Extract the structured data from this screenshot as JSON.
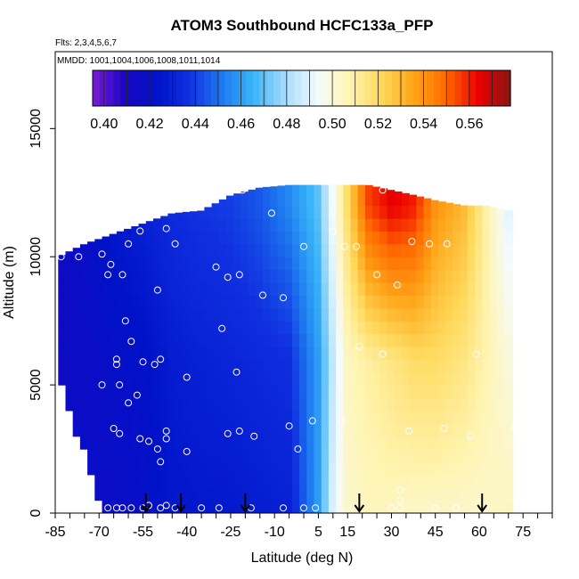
{
  "chart_data": {
    "type": "heatmap",
    "title": "ATOM3 Southbound HCFC133a_PFP",
    "flights_text": "Flts: 2,3,4,5,6,7",
    "dates_text": "MMDD: 1001,1004,1006,1008,1011,1014",
    "xlabel": "Latitude (deg N)",
    "ylabel": "Altitude (m)",
    "xlim": [
      -85,
      85
    ],
    "ylim": [
      0,
      18000
    ],
    "x_ticks": [
      -85,
      -70,
      -55,
      -40,
      -25,
      -10,
      5,
      15,
      30,
      45,
      60,
      75
    ],
    "y_ticks": [
      0,
      5000,
      10000,
      15000
    ],
    "colorbar": {
      "ticks": [
        "0.40",
        "0.42",
        "0.44",
        "0.46",
        "0.48",
        "0.50",
        "0.52",
        "0.54",
        "0.56"
      ],
      "range": [
        0.395,
        0.578
      ],
      "colors": [
        "#7a1cd8",
        "#1a06c2",
        "#0012c8",
        "#1030e0",
        "#1e78f0",
        "#38b4f8",
        "#a8dcfc",
        "#f4fbff",
        "#fff4b0",
        "#ffd85a",
        "#ffa418",
        "#ff6a00",
        "#ec0000",
        "#8a1414"
      ]
    },
    "arrow_latitudes": [
      -54,
      -42,
      -20,
      19,
      61
    ],
    "profiles": [
      {
        "lat": -84,
        "top": 10000,
        "values": [
          0.415,
          0.415,
          0.415
        ]
      },
      {
        "lat": -75,
        "top": 10500,
        "values": [
          0.418,
          0.417,
          0.419
        ]
      },
      {
        "lat": -65,
        "top": 10900,
        "values": [
          0.418,
          0.42,
          0.426
        ]
      },
      {
        "lat": -55,
        "top": 11300,
        "values": [
          0.42,
          0.422,
          0.43
        ]
      },
      {
        "lat": -45,
        "top": 11700,
        "values": [
          0.425,
          0.428,
          0.435
        ]
      },
      {
        "lat": -35,
        "top": 11800,
        "values": [
          0.426,
          0.43,
          0.438
        ]
      },
      {
        "lat": -25,
        "top": 12400,
        "values": [
          0.426,
          0.432,
          0.44
        ]
      },
      {
        "lat": -15,
        "top": 12700,
        "values": [
          0.428,
          0.434,
          0.445
        ]
      },
      {
        "lat": -5,
        "top": 12800,
        "values": [
          0.43,
          0.436,
          0.455
        ]
      },
      {
        "lat": 5,
        "top": 12800,
        "values": [
          0.46,
          0.46,
          0.47
        ]
      },
      {
        "lat": 10,
        "top": 12800,
        "values": [
          0.49,
          0.485,
          0.495
        ]
      },
      {
        "lat": 15,
        "top": 12800,
        "values": [
          0.503,
          0.505,
          0.52
        ]
      },
      {
        "lat": 22,
        "top": 12800,
        "values": [
          0.505,
          0.51,
          0.555
        ]
      },
      {
        "lat": 30,
        "top": 12600,
        "values": [
          0.505,
          0.515,
          0.565
        ]
      },
      {
        "lat": 38,
        "top": 12400,
        "values": [
          0.503,
          0.52,
          0.56
        ]
      },
      {
        "lat": 45,
        "top": 12200,
        "values": [
          0.503,
          0.52,
          0.54
        ]
      },
      {
        "lat": 55,
        "top": 12000,
        "values": [
          0.503,
          0.515,
          0.53
        ]
      },
      {
        "lat": 62,
        "top": 12000,
        "values": [
          0.503,
          0.508,
          0.51
        ]
      },
      {
        "lat": 70,
        "top": 11800,
        "values": [
          0.505,
          0.5,
          0.49
        ]
      }
    ],
    "samples": [
      {
        "lat": -83,
        "alt": 10000
      },
      {
        "lat": -77,
        "alt": 10000
      },
      {
        "lat": -69,
        "alt": 10100
      },
      {
        "lat": -66,
        "alt": 9700
      },
      {
        "lat": -67,
        "alt": 9300
      },
      {
        "lat": -62,
        "alt": 9300
      },
      {
        "lat": -60,
        "alt": 10500
      },
      {
        "lat": -56,
        "alt": 11000
      },
      {
        "lat": -47,
        "alt": 11100
      },
      {
        "lat": -44,
        "alt": 10500
      },
      {
        "lat": -30,
        "alt": 9600
      },
      {
        "lat": -26,
        "alt": 9200
      },
      {
        "lat": -22,
        "alt": 9300
      },
      {
        "lat": -21,
        "alt": 12600
      },
      {
        "lat": -11,
        "alt": 11700
      },
      {
        "lat": 0,
        "alt": 10400
      },
      {
        "lat": 10,
        "alt": 11000
      },
      {
        "lat": 14,
        "alt": 10400
      },
      {
        "lat": 18,
        "alt": 10400
      },
      {
        "lat": 27,
        "alt": 12600
      },
      {
        "lat": 37,
        "alt": 10600
      },
      {
        "lat": 43,
        "alt": 10500
      },
      {
        "lat": 49,
        "alt": 10500
      },
      {
        "lat": 25,
        "alt": 9300
      },
      {
        "lat": 32,
        "alt": 8900
      },
      {
        "lat": -50,
        "alt": 8700
      },
      {
        "lat": -14,
        "alt": 8500
      },
      {
        "lat": -7,
        "alt": 8400
      },
      {
        "lat": -61,
        "alt": 7500
      },
      {
        "lat": -28,
        "alt": 7200
      },
      {
        "lat": -59,
        "alt": 6700
      },
      {
        "lat": 19,
        "alt": 6500
      },
      {
        "lat": 27,
        "alt": 6200
      },
      {
        "lat": 59,
        "alt": 6200
      },
      {
        "lat": -64,
        "alt": 6000
      },
      {
        "lat": -55,
        "alt": 5900
      },
      {
        "lat": -49,
        "alt": 6000
      },
      {
        "lat": -64,
        "alt": 5800
      },
      {
        "lat": -51,
        "alt": 5800
      },
      {
        "lat": -23,
        "alt": 5500
      },
      {
        "lat": -69,
        "alt": 5000
      },
      {
        "lat": -63,
        "alt": 5000
      },
      {
        "lat": -57,
        "alt": 4600
      },
      {
        "lat": -60,
        "alt": 4300
      },
      {
        "lat": -40,
        "alt": 5300
      },
      {
        "lat": 3,
        "alt": 3600
      },
      {
        "lat": 13,
        "alt": 3600
      },
      {
        "lat": -65,
        "alt": 3300
      },
      {
        "lat": -63,
        "alt": 3100
      },
      {
        "lat": -47,
        "alt": 3200
      },
      {
        "lat": -47,
        "alt": 2900
      },
      {
        "lat": -56,
        "alt": 2900
      },
      {
        "lat": -53,
        "alt": 2800
      },
      {
        "lat": -26,
        "alt": 3100
      },
      {
        "lat": -22,
        "alt": 3200
      },
      {
        "lat": -17,
        "alt": 3000
      },
      {
        "lat": -5,
        "alt": 3400
      },
      {
        "lat": 36,
        "alt": 3200
      },
      {
        "lat": 48,
        "alt": 3300
      },
      {
        "lat": 57,
        "alt": 3000
      },
      {
        "lat": 72,
        "alt": 3300
      },
      {
        "lat": -50,
        "alt": 2500
      },
      {
        "lat": -40,
        "alt": 2400
      },
      {
        "lat": -2,
        "alt": 2500
      },
      {
        "lat": -49,
        "alt": 2000
      },
      {
        "lat": 33,
        "alt": 900
      },
      {
        "lat": 33,
        "alt": 500
      },
      {
        "lat": -67,
        "alt": 200
      },
      {
        "lat": -64,
        "alt": 200
      },
      {
        "lat": -62,
        "alt": 200
      },
      {
        "lat": -59,
        "alt": 200
      },
      {
        "lat": -55,
        "alt": 200
      },
      {
        "lat": -53,
        "alt": 300
      },
      {
        "lat": -49,
        "alt": 200
      },
      {
        "lat": -47,
        "alt": 300
      },
      {
        "lat": -44,
        "alt": 200
      },
      {
        "lat": -35,
        "alt": 200
      },
      {
        "lat": -29,
        "alt": 200
      },
      {
        "lat": -18,
        "alt": 200
      },
      {
        "lat": -7,
        "alt": 200
      },
      {
        "lat": 0,
        "alt": 200
      },
      {
        "lat": 4,
        "alt": 200
      },
      {
        "lat": 17,
        "alt": 200
      },
      {
        "lat": 30,
        "alt": 200
      },
      {
        "lat": 45,
        "alt": 200
      },
      {
        "lat": 52,
        "alt": 200
      },
      {
        "lat": 62,
        "alt": 200
      },
      {
        "lat": 33,
        "alt": 200
      }
    ]
  }
}
